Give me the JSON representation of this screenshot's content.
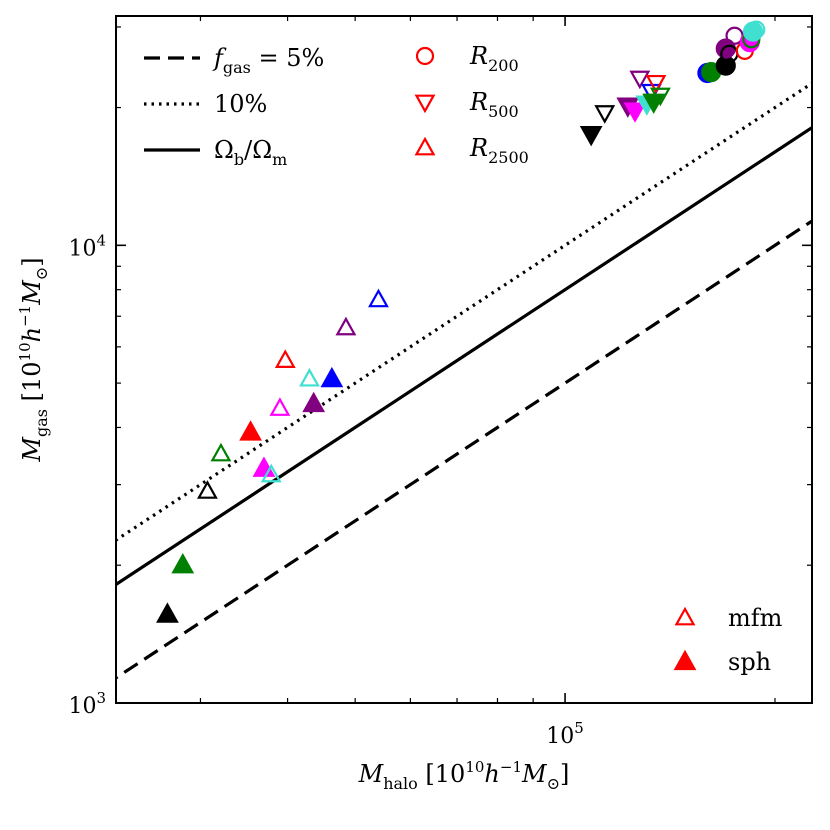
{
  "chart_data": {
    "type": "scatter",
    "xscale": "log",
    "yscale": "log",
    "xlim": [
      22700,
      226000
    ],
    "ylim": [
      1000,
      31700
    ],
    "x_ticks": [
      {
        "value": 100000,
        "base": "10",
        "exp": "5"
      }
    ],
    "y_ticks": [
      {
        "value": 1000,
        "base": "10",
        "exp": "3"
      },
      {
        "value": 10000,
        "base": "10",
        "exp": "4"
      }
    ],
    "xlabel": {
      "main": "M",
      "sub": "halo",
      "unit_open": " [10",
      "unit_exp": "10",
      "unit_h": "h",
      "unit_minus": "−1",
      "unit_m": "M",
      "unit_sun": "⊙",
      "unit_close": "]"
    },
    "ylabel": {
      "main": "M",
      "sub": "gas",
      "unit_open": " [10",
      "unit_exp": "10",
      "unit_h": "h",
      "unit_minus": "−1",
      "unit_m": "M",
      "unit_sun": "⊙",
      "unit_close": "]"
    },
    "reference_lines": [
      {
        "id": "fgas5",
        "fraction": 0.05,
        "style": "dashed"
      },
      {
        "id": "fgas10",
        "fraction": 0.1,
        "style": "dotted"
      },
      {
        "id": "omega",
        "fraction": 0.08,
        "style": "solid"
      }
    ],
    "legend_lines": {
      "position": "top-left",
      "entries": [
        {
          "style": "dashed",
          "label_main": "f",
          "label_sub": "gas",
          "label_rest": " = 5%"
        },
        {
          "style": "dotted",
          "label_main": "10%"
        },
        {
          "style": "solid",
          "label_a": "Ω",
          "label_a_sub": "b",
          "label_sep": "/Ω",
          "label_b_sub": "m"
        }
      ]
    },
    "legend_markers": {
      "position": "top-center",
      "color": "#ff0000",
      "entries": [
        {
          "marker": "circle",
          "label_main": "R",
          "label_sub": "200"
        },
        {
          "marker": "triangle-down",
          "label_main": "R",
          "label_sub": "500"
        },
        {
          "marker": "triangle-up",
          "label_main": "R",
          "label_sub": "2500"
        }
      ]
    },
    "legend_codes": {
      "position": "bottom-right",
      "color": "#ff0000",
      "entries": [
        {
          "marker": "triangle-up",
          "filled": false,
          "label": "mfm"
        },
        {
          "marker": "triangle-up",
          "filled": true,
          "label": "sph"
        }
      ]
    },
    "colors": {
      "black": "#000000",
      "green": "#008000",
      "red": "#ff0000",
      "magenta": "#ff00ff",
      "cyan": "#40e0d0",
      "purple": "#800080",
      "blue": "#0000ff"
    },
    "points": [
      {
        "x": 26900,
        "y": 1560,
        "marker": "up",
        "filled": true,
        "color": "black"
      },
      {
        "x": 28300,
        "y": 2000,
        "marker": "up",
        "filled": true,
        "color": "green"
      },
      {
        "x": 30700,
        "y": 2900,
        "marker": "up",
        "filled": false,
        "color": "black"
      },
      {
        "x": 32100,
        "y": 3500,
        "marker": "up",
        "filled": false,
        "color": "green"
      },
      {
        "x": 35400,
        "y": 3900,
        "marker": "up",
        "filled": true,
        "color": "red"
      },
      {
        "x": 37000,
        "y": 3250,
        "marker": "up",
        "filled": true,
        "color": "magenta"
      },
      {
        "x": 37900,
        "y": 3150,
        "marker": "up",
        "filled": false,
        "color": "cyan"
      },
      {
        "x": 39000,
        "y": 4400,
        "marker": "up",
        "filled": false,
        "color": "magenta"
      },
      {
        "x": 39700,
        "y": 5600,
        "marker": "up",
        "filled": false,
        "color": "red"
      },
      {
        "x": 43000,
        "y": 5100,
        "marker": "up",
        "filled": false,
        "color": "cyan"
      },
      {
        "x": 43600,
        "y": 4500,
        "marker": "up",
        "filled": true,
        "color": "purple"
      },
      {
        "x": 46300,
        "y": 5100,
        "marker": "up",
        "filled": true,
        "color": "blue"
      },
      {
        "x": 48500,
        "y": 6600,
        "marker": "up",
        "filled": false,
        "color": "purple"
      },
      {
        "x": 54000,
        "y": 7600,
        "marker": "up",
        "filled": false,
        "color": "blue"
      },
      {
        "x": 109000,
        "y": 17500,
        "marker": "down",
        "filled": true,
        "color": "black"
      },
      {
        "x": 114000,
        "y": 19500,
        "marker": "down",
        "filled": false,
        "color": "black"
      },
      {
        "x": 123000,
        "y": 20200,
        "marker": "down",
        "filled": true,
        "color": "purple"
      },
      {
        "x": 126000,
        "y": 19700,
        "marker": "down",
        "filled": true,
        "color": "magenta"
      },
      {
        "x": 128000,
        "y": 23200,
        "marker": "down",
        "filled": false,
        "color": "purple"
      },
      {
        "x": 131000,
        "y": 20400,
        "marker": "down",
        "filled": true,
        "color": "cyan"
      },
      {
        "x": 133000,
        "y": 21700,
        "marker": "down",
        "filled": false,
        "color": "blue"
      },
      {
        "x": 134000,
        "y": 20600,
        "marker": "down",
        "filled": true,
        "color": "green"
      },
      {
        "x": 135000,
        "y": 22700,
        "marker": "down",
        "filled": false,
        "color": "red"
      },
      {
        "x": 137000,
        "y": 21300,
        "marker": "down",
        "filled": false,
        "color": "green"
      },
      {
        "x": 160000,
        "y": 23800,
        "marker": "circle",
        "filled": true,
        "color": "blue"
      },
      {
        "x": 162000,
        "y": 23900,
        "marker": "circle",
        "filled": true,
        "color": "green"
      },
      {
        "x": 170000,
        "y": 24700,
        "marker": "circle",
        "filled": true,
        "color": "black"
      },
      {
        "x": 170000,
        "y": 26900,
        "marker": "circle",
        "filled": true,
        "color": "purple"
      },
      {
        "x": 172000,
        "y": 26200,
        "marker": "circle",
        "filled": false,
        "color": "black"
      },
      {
        "x": 175000,
        "y": 28700,
        "marker": "circle",
        "filled": false,
        "color": "purple"
      },
      {
        "x": 181000,
        "y": 26600,
        "marker": "circle",
        "filled": false,
        "color": "red"
      },
      {
        "x": 184000,
        "y": 27800,
        "marker": "circle",
        "filled": true,
        "color": "magenta"
      },
      {
        "x": 185000,
        "y": 28200,
        "marker": "circle",
        "filled": false,
        "color": "green"
      },
      {
        "x": 186000,
        "y": 29300,
        "marker": "circle",
        "filled": true,
        "color": "cyan"
      },
      {
        "x": 188000,
        "y": 29600,
        "marker": "circle",
        "filled": false,
        "color": "cyan"
      }
    ]
  }
}
